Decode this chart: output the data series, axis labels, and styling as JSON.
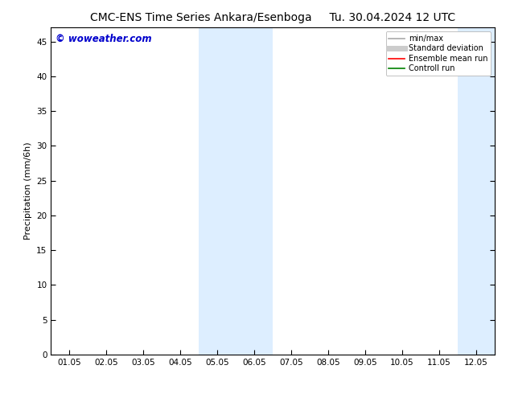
{
  "title_left": "CMC-ENS Time Series Ankara/Esenboga",
  "title_right": "Tu. 30.04.2024 12 UTC",
  "ylabel": "Precipitation (mm/6h)",
  "watermark": "© woweather.com",
  "x_tick_labels": [
    "01.05",
    "02.05",
    "03.05",
    "04.05",
    "05.05",
    "06.05",
    "07.05",
    "08.05",
    "09.05",
    "10.05",
    "11.05",
    "12.05"
  ],
  "x_tick_positions": [
    0,
    1,
    2,
    3,
    4,
    5,
    6,
    7,
    8,
    9,
    10,
    11
  ],
  "ylim": [
    0,
    47
  ],
  "yticks": [
    0,
    5,
    10,
    15,
    20,
    25,
    30,
    35,
    40,
    45
  ],
  "shaded_bands": [
    {
      "xmin": 3.5,
      "xmax": 4.5,
      "color": "#ddeeff"
    },
    {
      "xmin": 4.5,
      "xmax": 5.5,
      "color": "#ddeeff"
    },
    {
      "xmin": 10.5,
      "xmax": 11.5,
      "color": "#ddeeff"
    },
    {
      "xmin": 11.5,
      "xmax": 12.5,
      "color": "#ddeeff"
    }
  ],
  "legend_entries": [
    {
      "label": "min/max",
      "color": "#aaaaaa",
      "linewidth": 1.2,
      "linestyle": "-"
    },
    {
      "label": "Standard deviation",
      "color": "#cccccc",
      "linewidth": 5,
      "linestyle": "-"
    },
    {
      "label": "Ensemble mean run",
      "color": "red",
      "linewidth": 1.2,
      "linestyle": "-"
    },
    {
      "label": "Controll run",
      "color": "green",
      "linewidth": 1.2,
      "linestyle": "-"
    }
  ],
  "bg_color": "#ffffff",
  "plot_bg_color": "#ffffff",
  "watermark_color": "#0000cc",
  "title_fontsize": 10,
  "axis_fontsize": 8,
  "tick_fontsize": 7.5
}
